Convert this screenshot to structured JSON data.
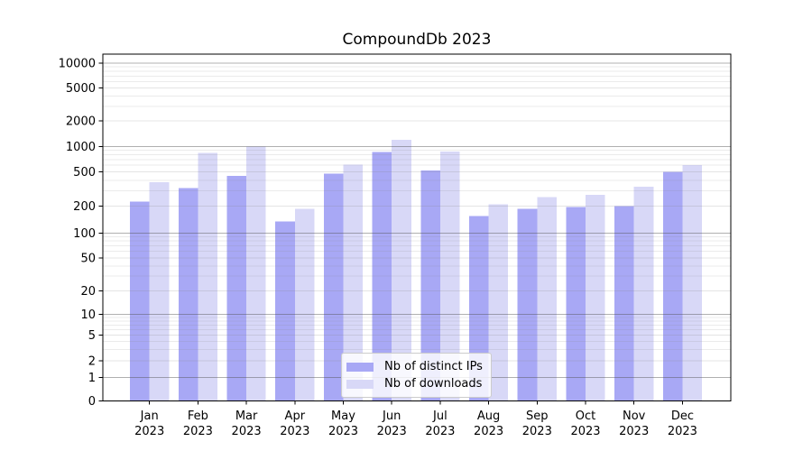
{
  "chart_data": {
    "type": "bar",
    "title": "CompoundDb 2023",
    "categories": [
      "Jan",
      "Feb",
      "Mar",
      "Apr",
      "May",
      "Jun",
      "Jul",
      "Aug",
      "Sep",
      "Oct",
      "Nov",
      "Dec"
    ],
    "year_label": "2023",
    "series": [
      {
        "name": "Nb of distinct IPs",
        "color": "#a8a8f5",
        "values": [
          225,
          325,
          450,
          135,
          480,
          860,
          520,
          155,
          185,
          195,
          200,
          500
        ]
      },
      {
        "name": "Nb of downloads",
        "color": "#d8d8f7",
        "values": [
          380,
          840,
          1000,
          185,
          610,
          1200,
          870,
          210,
          255,
          270,
          335,
          600
        ]
      }
    ],
    "yscale": "symlog",
    "ytick_values": [
      0,
      1,
      2,
      5,
      10,
      20,
      50,
      100,
      200,
      500,
      1000,
      2000,
      5000,
      10000
    ],
    "ytick_labels": [
      "0",
      "1",
      "2",
      "5",
      "10",
      "20",
      "50",
      "100",
      "200",
      "500",
      "1000",
      "2000",
      "5000",
      "10000"
    ],
    "ylim": [
      0,
      13000
    ],
    "grid": "both",
    "legend_position": "lower center",
    "background": "#ffffff"
  }
}
